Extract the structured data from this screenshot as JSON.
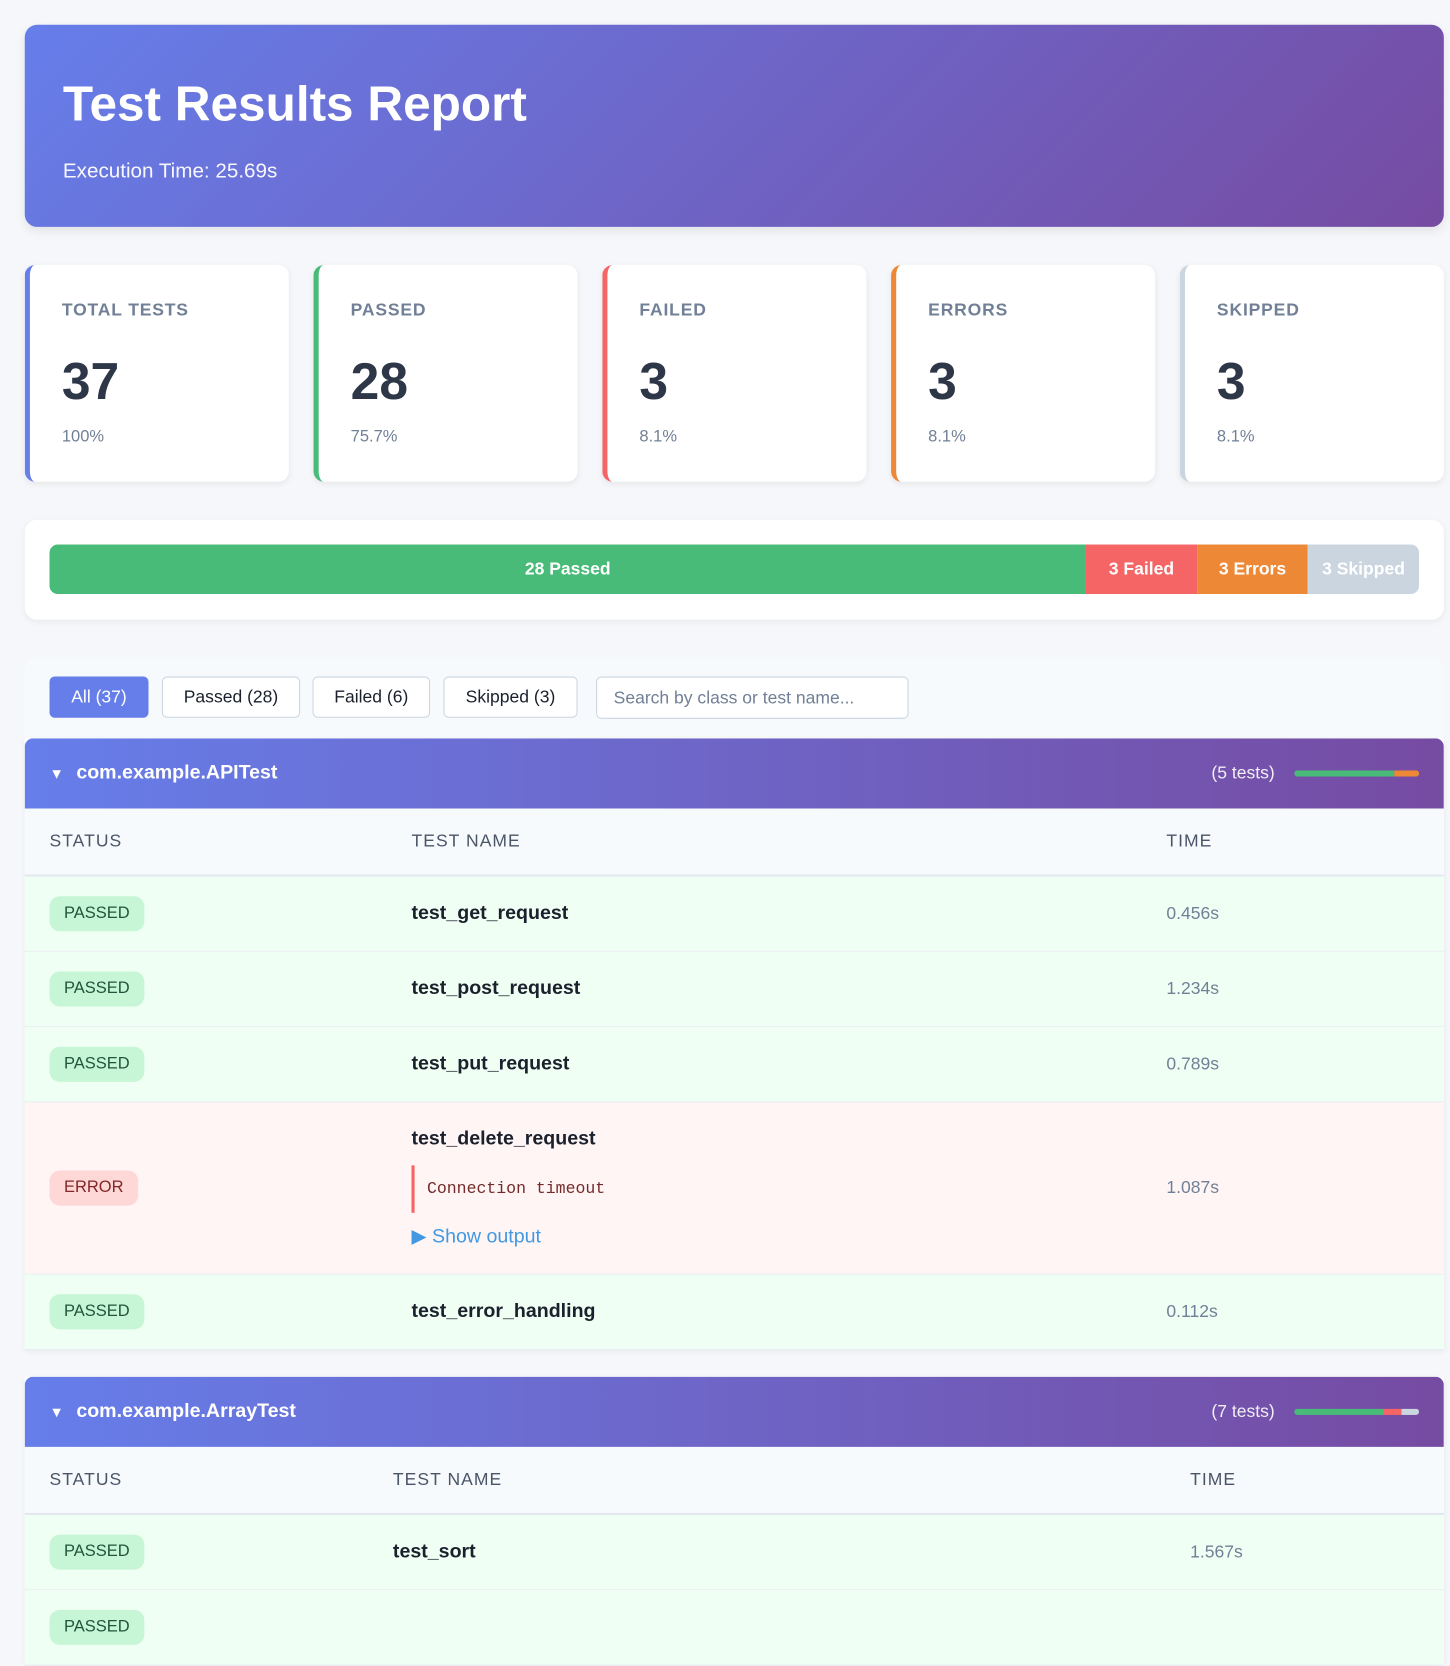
{
  "header": {
    "title": "Test Results Report",
    "subtitle": "Execution Time: 25.69s"
  },
  "stats": [
    {
      "label": "Total Tests",
      "value": 37,
      "percent": "100%",
      "color": "#667eea"
    },
    {
      "label": "Passed",
      "value": 28,
      "percent": "75.7%",
      "color": "#48bb78"
    },
    {
      "label": "Failed",
      "value": 3,
      "percent": "8.1%",
      "color": "#f56565"
    },
    {
      "label": "Errors",
      "value": 3,
      "percent": "8.1%",
      "color": "#ed8936"
    },
    {
      "label": "Skipped",
      "value": 3,
      "percent": "8.1%",
      "color": "#cbd5e0"
    }
  ],
  "progress": [
    "28 Passed",
    "3 Failed",
    "3 Errors",
    "3 Skipped"
  ],
  "filters": [
    "All (37)",
    "Passed (28)",
    "Failed (6)",
    "Skipped (3)"
  ],
  "search_placeholder": "Search by class or test name...",
  "suites": [
    {
      "name": "com.example.APITest",
      "count": "(5 tests)",
      "columns": [
        "Status",
        "Test Name",
        "Time"
      ],
      "tests": [
        {
          "status": "PASSED",
          "name": "test_get_request",
          "time": "0.456s"
        },
        {
          "status": "PASSED",
          "name": "test_post_request",
          "time": "1.234s"
        },
        {
          "status": "PASSED",
          "name": "test_put_request",
          "time": "0.789s"
        },
        {
          "status": "ERROR",
          "name": "test_delete_request",
          "time": "1.087s",
          "message": "Connection timeout",
          "output": "Show output"
        },
        {
          "status": "PASSED",
          "name": "test_error_handling",
          "time": "0.112s"
        }
      ]
    },
    {
      "name": "com.example.ArrayTest",
      "count": "(7 tests)",
      "columns": [
        "Status",
        "Test Name",
        "Time"
      ],
      "tests": [
        {
          "status": "PASSED",
          "name": "test_sort",
          "time": "1.567s"
        },
        {
          "status": "PASSED"
        }
      ]
    }
  ]
}
